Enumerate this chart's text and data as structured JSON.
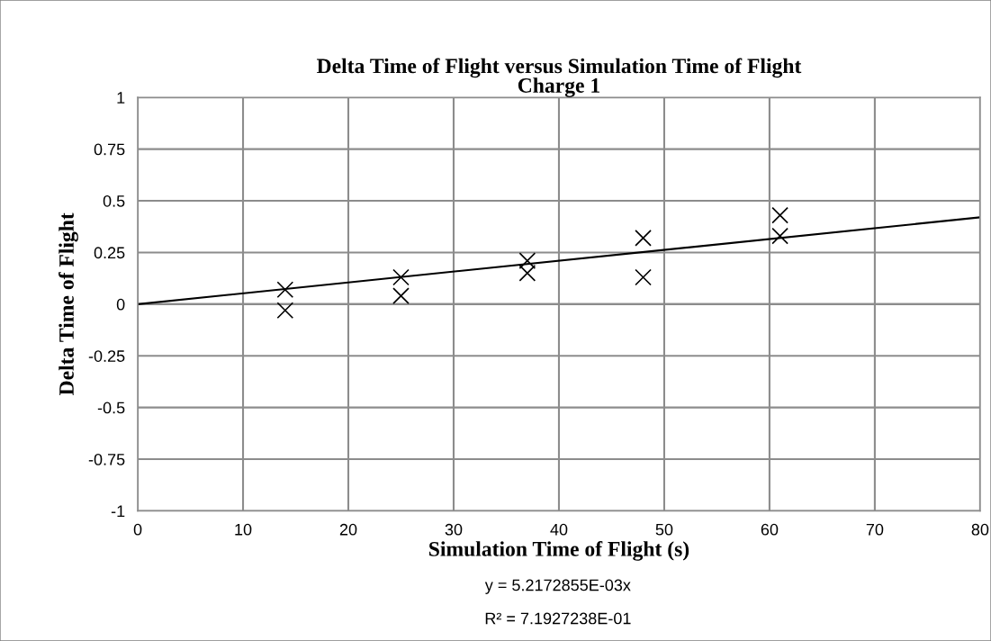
{
  "chart_data": {
    "type": "scatter",
    "title": "Delta Time of Flight versus Simulation Time of Flight\nCharge 1",
    "xlabel": "Simulation Time of Flight (s)",
    "ylabel": "Delta Time of Flight",
    "series": [
      {
        "color": "#000000",
        "marker": "cross",
        "x": [
          14,
          14,
          25,
          25,
          37,
          37,
          48,
          48,
          61,
          61
        ],
        "values": [
          0.07,
          -0.03,
          0.13,
          0.04,
          0.21,
          0.15,
          0.32,
          0.13,
          0.43,
          0.33
        ]
      },
      {
        "type": "line",
        "color": "#000000",
        "marker": "none",
        "line_style": "solid",
        "x": [
          0,
          80
        ],
        "values": [
          0,
          0.42
        ]
      }
    ],
    "xlim": [
      0,
      80
    ],
    "xticks": [
      0,
      10,
      20,
      30,
      40,
      50,
      60,
      70,
      80
    ],
    "ylim": [
      -1,
      1
    ],
    "yticks": [
      -1,
      -0.75,
      -0.5,
      -0.25,
      0,
      0.25,
      0.5,
      0.75,
      1
    ],
    "grid": true,
    "legend": false,
    "annotations": [
      "y = 5.2172855E-03x",
      "R² = 7.1927238E-01"
    ]
  }
}
